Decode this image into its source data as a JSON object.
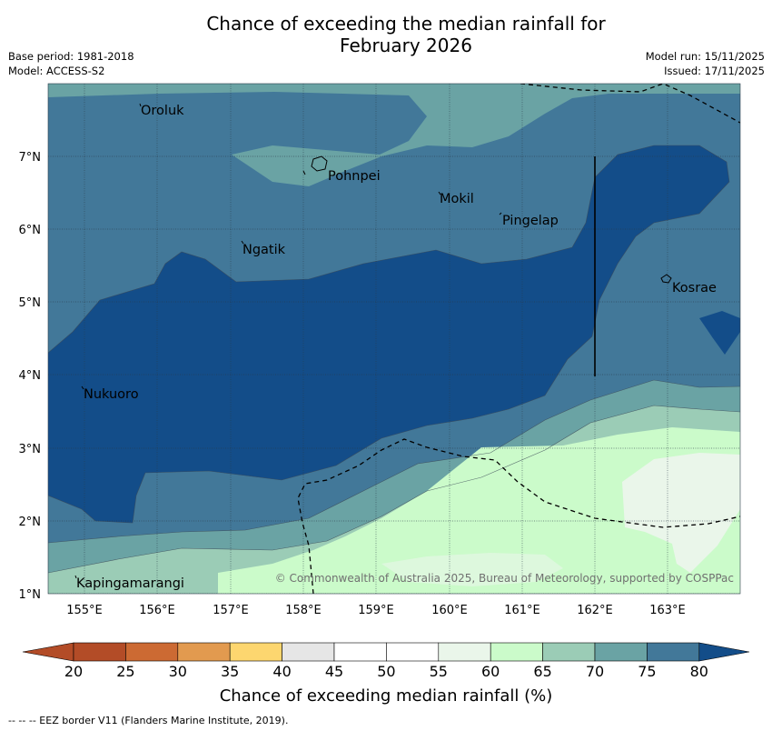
{
  "title": {
    "line1": "Chance of exceeding the median rainfall for",
    "line2": "February 2026"
  },
  "meta": {
    "base_period": "Base period: 1981-2018",
    "model": "Model: ACCESS-S2",
    "model_run": "Model run: 15/11/2025",
    "issued": "Issued: 17/11/2025"
  },
  "map": {
    "lat_labels": [
      "7°N",
      "6°N",
      "5°N",
      "4°N",
      "3°N",
      "2°N",
      "1°N"
    ],
    "lon_labels": [
      "155°E",
      "156°E",
      "157°E",
      "158°E",
      "159°E",
      "160°E",
      "161°E",
      "162°E",
      "163°E"
    ],
    "places": [
      "Oroluk",
      "Pohnpei",
      "Mokil",
      "Pingelap",
      "Ngatik",
      "Kosrae",
      "Nukuoro",
      "Kapingamarangi"
    ],
    "credit": "© Commonwealth of Australia 2025, Bureau of Meteorology, supported by COSPPac"
  },
  "colorbar": {
    "ticks": [
      "20",
      "25",
      "30",
      "35",
      "40",
      "45",
      "50",
      "55",
      "60",
      "65",
      "70",
      "75",
      "80"
    ],
    "colors": [
      "#b34c27",
      "#cc6a33",
      "#e29a4f",
      "#fdd66f",
      "#e6e6e6",
      "#ffffff",
      "#ffffff",
      "#eaf6ea",
      "#cbfbca",
      "#9bccb6",
      "#6aa3a4",
      "#427899",
      "#134d89"
    ],
    "title": "Chance of exceeding median rainfall (%)"
  },
  "footnote": "--  --  -- EEZ border V11 (Flanders Marine Institute, 2019)."
}
